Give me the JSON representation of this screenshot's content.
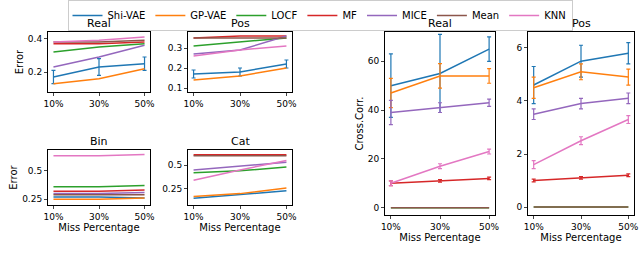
{
  "chart_data": [
    {
      "type": "line",
      "title": "Real",
      "y_label": "Error",
      "categories": [
        "10%",
        "30%",
        "50%"
      ],
      "ylim": [
        0.08,
        0.44
      ],
      "yticks": [
        0.2,
        0.4
      ],
      "legend": "top",
      "series": [
        {
          "name": "Shi-VAE",
          "color": "#1f77b4",
          "values": [
            0.17,
            0.23,
            0.25
          ],
          "errors": [
            0.04,
            0.05,
            0.04
          ]
        },
        {
          "name": "GP-VAE",
          "color": "#ff7f0e",
          "values": [
            0.13,
            0.16,
            0.22
          ]
        },
        {
          "name": "LOCF",
          "color": "#2ca02c",
          "values": [
            0.32,
            0.35,
            0.37
          ]
        },
        {
          "name": "MF",
          "color": "#d62728",
          "values": [
            0.37,
            0.37,
            0.38
          ]
        },
        {
          "name": "MICE",
          "color": "#9467bd",
          "values": [
            0.23,
            0.29,
            0.36
          ]
        },
        {
          "name": "Mean",
          "color": "#8c564b",
          "values": [
            0.38,
            0.38,
            0.39
          ]
        },
        {
          "name": "KNN",
          "color": "#e377c2",
          "values": [
            0.38,
            0.39,
            0.41
          ]
        }
      ]
    },
    {
      "type": "line",
      "title": "Pos",
      "categories": [
        "10%",
        "30%",
        "50%"
      ],
      "ylim": [
        0.08,
        0.38
      ],
      "yticks": [
        0.1,
        0.2,
        0.3
      ],
      "series": [
        {
          "name": "Shi-VAE",
          "color": "#1f77b4",
          "values": [
            0.17,
            0.18,
            0.22
          ],
          "errors": [
            0.02,
            0.02,
            0.02
          ]
        },
        {
          "name": "GP-VAE",
          "color": "#ff7f0e",
          "values": [
            0.14,
            0.16,
            0.2
          ]
        },
        {
          "name": "LOCF",
          "color": "#2ca02c",
          "values": [
            0.31,
            0.33,
            0.35
          ]
        },
        {
          "name": "MF",
          "color": "#d62728",
          "values": [
            0.35,
            0.36,
            0.36
          ]
        },
        {
          "name": "MICE",
          "color": "#9467bd",
          "values": [
            0.27,
            0.29,
            0.36
          ]
        },
        {
          "name": "Mean",
          "color": "#8c564b",
          "values": [
            0.35,
            0.35,
            0.35
          ]
        },
        {
          "name": "KNN",
          "color": "#e377c2",
          "values": [
            0.26,
            0.29,
            0.31
          ]
        }
      ]
    },
    {
      "type": "line",
      "title": "Bin",
      "y_label": "Error",
      "x_label": "Miss Percentage",
      "categories": [
        "10%",
        "30%",
        "50%"
      ],
      "ylim": [
        0.2,
        0.68
      ],
      "yticks": [
        0.25,
        0.5
      ],
      "series": [
        {
          "name": "Shi-VAE",
          "color": "#1f77b4",
          "values": [
            0.27,
            0.27,
            0.26
          ]
        },
        {
          "name": "GP-VAE",
          "color": "#ff7f0e",
          "values": [
            0.25,
            0.25,
            0.26
          ]
        },
        {
          "name": "LOCF",
          "color": "#2ca02c",
          "values": [
            0.36,
            0.36,
            0.37
          ]
        },
        {
          "name": "MF",
          "color": "#d62728",
          "values": [
            0.32,
            0.32,
            0.33
          ]
        },
        {
          "name": "MICE",
          "color": "#9467bd",
          "values": [
            0.3,
            0.3,
            0.31
          ]
        },
        {
          "name": "Mean",
          "color": "#8c564b",
          "values": [
            0.29,
            0.29,
            0.29
          ]
        },
        {
          "name": "KNN",
          "color": "#e377c2",
          "values": [
            0.63,
            0.63,
            0.64
          ]
        }
      ]
    },
    {
      "type": "line",
      "title": "Cat",
      "x_label": "Miss Percentage",
      "categories": [
        "10%",
        "30%",
        "50%"
      ],
      "ylim": [
        0.08,
        0.66
      ],
      "yticks": [
        0.25,
        0.5
      ],
      "series": [
        {
          "name": "Shi-VAE",
          "color": "#1f77b4",
          "values": [
            0.15,
            0.19,
            0.23
          ]
        },
        {
          "name": "GP-VAE",
          "color": "#ff7f0e",
          "values": [
            0.17,
            0.2,
            0.26
          ]
        },
        {
          "name": "LOCF",
          "color": "#2ca02c",
          "values": [
            0.42,
            0.44,
            0.48
          ]
        },
        {
          "name": "MF",
          "color": "#d62728",
          "values": [
            0.61,
            0.61,
            0.61
          ]
        },
        {
          "name": "MICE",
          "color": "#9467bd",
          "values": [
            0.45,
            0.49,
            0.53
          ]
        },
        {
          "name": "Mean",
          "color": "#8c564b",
          "values": [
            0.6,
            0.6,
            0.6
          ]
        },
        {
          "name": "KNN",
          "color": "#e377c2",
          "values": [
            0.34,
            0.45,
            0.55
          ]
        }
      ]
    },
    {
      "type": "line",
      "title": "Real",
      "y_label": "Cross.Corr.",
      "x_label": "Miss Percentage",
      "categories": [
        "10%",
        "30%",
        "50%"
      ],
      "ylim": [
        -3,
        72
      ],
      "yticks": [
        0,
        20,
        40,
        60
      ],
      "series": [
        {
          "name": "Shi-VAE",
          "color": "#1f77b4",
          "values": [
            50,
            55,
            65
          ],
          "errors": [
            13,
            16,
            5
          ]
        },
        {
          "name": "GP-VAE",
          "color": "#ff7f0e",
          "values": [
            47,
            54,
            54
          ],
          "errors": [
            6,
            5,
            3
          ]
        },
        {
          "name": "LOCF",
          "color": "#2ca02c",
          "values": [
            0,
            0,
            0
          ]
        },
        {
          "name": "MF",
          "color": "#d62728",
          "values": [
            10,
            11,
            12
          ],
          "errors": [
            1,
            0.5,
            0.5
          ]
        },
        {
          "name": "MICE",
          "color": "#9467bd",
          "values": [
            39,
            41,
            43
          ],
          "errors": [
            5,
            2,
            1.5
          ]
        },
        {
          "name": "Mean",
          "color": "#8c564b",
          "values": [
            0,
            0,
            0
          ]
        },
        {
          "name": "KNN",
          "color": "#e377c2",
          "values": [
            10,
            17,
            23
          ],
          "errors": [
            1,
            1,
            1
          ]
        }
      ]
    },
    {
      "type": "line",
      "title": "Pos",
      "x_label": "Miss Percentage",
      "categories": [
        "10%",
        "30%",
        "50%"
      ],
      "ylim": [
        -0.3,
        6.6
      ],
      "yticks": [
        0,
        2,
        4,
        6
      ],
      "series": [
        {
          "name": "Shi-VAE",
          "color": "#1f77b4",
          "values": [
            4.6,
            5.5,
            5.8
          ],
          "errors": [
            0.7,
            0.6,
            0.4
          ]
        },
        {
          "name": "GP-VAE",
          "color": "#ff7f0e",
          "values": [
            4.5,
            5.1,
            4.9
          ],
          "errors": [
            0.4,
            0.3,
            0.3
          ]
        },
        {
          "name": "LOCF",
          "color": "#2ca02c",
          "values": [
            0,
            0,
            0
          ]
        },
        {
          "name": "MF",
          "color": "#d62728",
          "values": [
            1.0,
            1.1,
            1.2
          ],
          "errors": [
            0.05,
            0.05,
            0.05
          ]
        },
        {
          "name": "MICE",
          "color": "#9467bd",
          "values": [
            3.5,
            3.9,
            4.1
          ],
          "errors": [
            0.2,
            0.2,
            0.2
          ]
        },
        {
          "name": "Mean",
          "color": "#8c564b",
          "values": [
            0,
            0,
            0
          ]
        },
        {
          "name": "KNN",
          "color": "#e377c2",
          "values": [
            1.6,
            2.5,
            3.3
          ],
          "errors": [
            0.15,
            0.15,
            0.15
          ]
        }
      ]
    }
  ]
}
